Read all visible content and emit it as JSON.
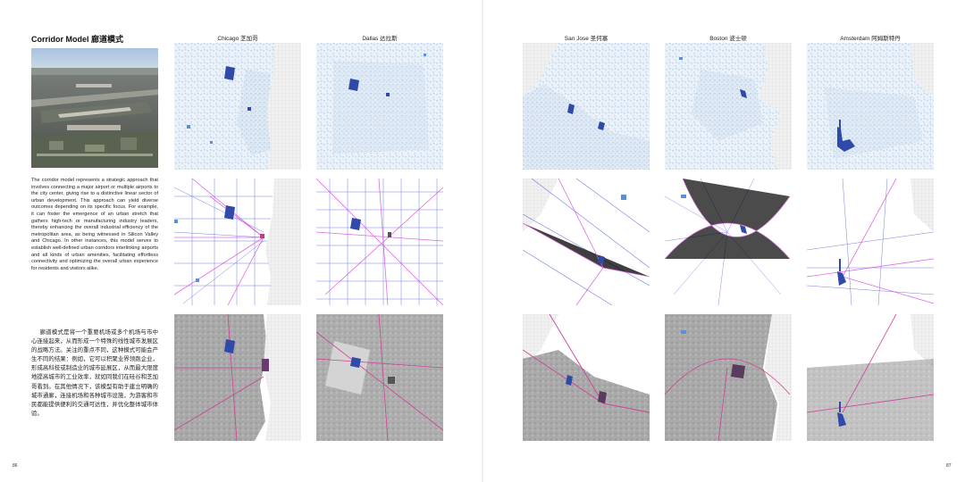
{
  "left_page": {
    "title": "Corridor Model 廊道模式",
    "photo_icon": "aerial-airport-photo",
    "body_en": "The corridor model represents a strategic approach that involves connecting a major airport or multiple airports to the city center, giving rise to a distinctive linear sector of urban development. This approach can yield diverse outcomes depending on its specific focus. For example, it can foster the emergence of an urban stretch that gathers high-tech or manufacturing industry leaders, thereby enhancing the overall industrial efficiency of the metropolitan area, as being witnessed in Silicon Valley and Chicago. In other instances, this model serves to establish well-defined urban corridors interlinking airports and all kinds of urban amenities, facilitating effortless connectivity and optimizing the overall urban experience for residents and visitors alike.",
    "body_zh": "廊道模式是将一个重要机场或多个机场与市中心连接起来，从而形成一个特殊的线性城市发展区的战略方法。关注的重点不同，这种模式可能会产生不同的结果：例如，它可以积聚业界领跑企业，形成高科技或制造业的城市延展区，从而最大限度地提高城市的工业效率，就如同我们在硅谷和芝加哥看到。在其他情况下，该模型有助于建立明确的城市通廊，连接机场和各种城市设施，为游客和市民都能提供便利的交通可达性，并优化整体城市体验。",
    "page_number": "86"
  },
  "right_page": {
    "page_number": "87"
  },
  "columns": [
    {
      "label": "Chicago 芝加哥"
    },
    {
      "label": "Dallas 达拉斯"
    },
    {
      "label": "San Jose 圣何塞"
    },
    {
      "label": "Boston 波士顿"
    },
    {
      "label": "Amsterdam 阿姆斯特丹"
    }
  ],
  "rows": [
    {
      "name": "density"
    },
    {
      "name": "transit-network"
    },
    {
      "name": "landuse"
    }
  ],
  "colors": {
    "airport": "#2f4aa8",
    "airport_light": "#5b8fd8",
    "density": "#c9dbee",
    "transit_blue": "#3b49d6",
    "transit_magenta": "#d23bd8",
    "landuse_dark": "#7a7a7a",
    "landuse_light": "#b9b9b9",
    "water_hatch": "#d6d6d6",
    "highway": "#d0409a"
  }
}
